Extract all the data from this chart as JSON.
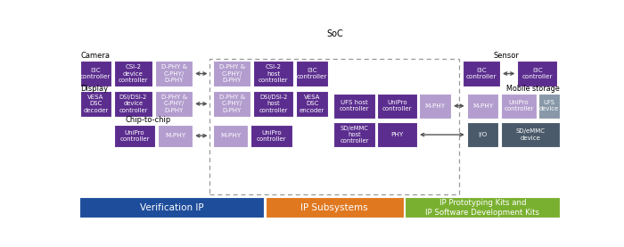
{
  "dark_purple": "#5b2d8e",
  "light_purple": "#b39dce",
  "dark_gray": "#4a5a6a",
  "light_gray": "#8898a8",
  "blue_bar": "#1e4d9b",
  "orange_bar": "#e07820",
  "green_bar": "#7ab030",
  "white": "#ffffff",
  "text_dark": "#222222",
  "soc_border": "#aaaaaa",
  "bar_labels": [
    "Verification IP",
    "IP Subsystems",
    "IP Prototyping Kits and\nIP Software Development Kits"
  ],
  "bar_colors": [
    "#1e4d9b",
    "#e07820",
    "#7ab030"
  ]
}
